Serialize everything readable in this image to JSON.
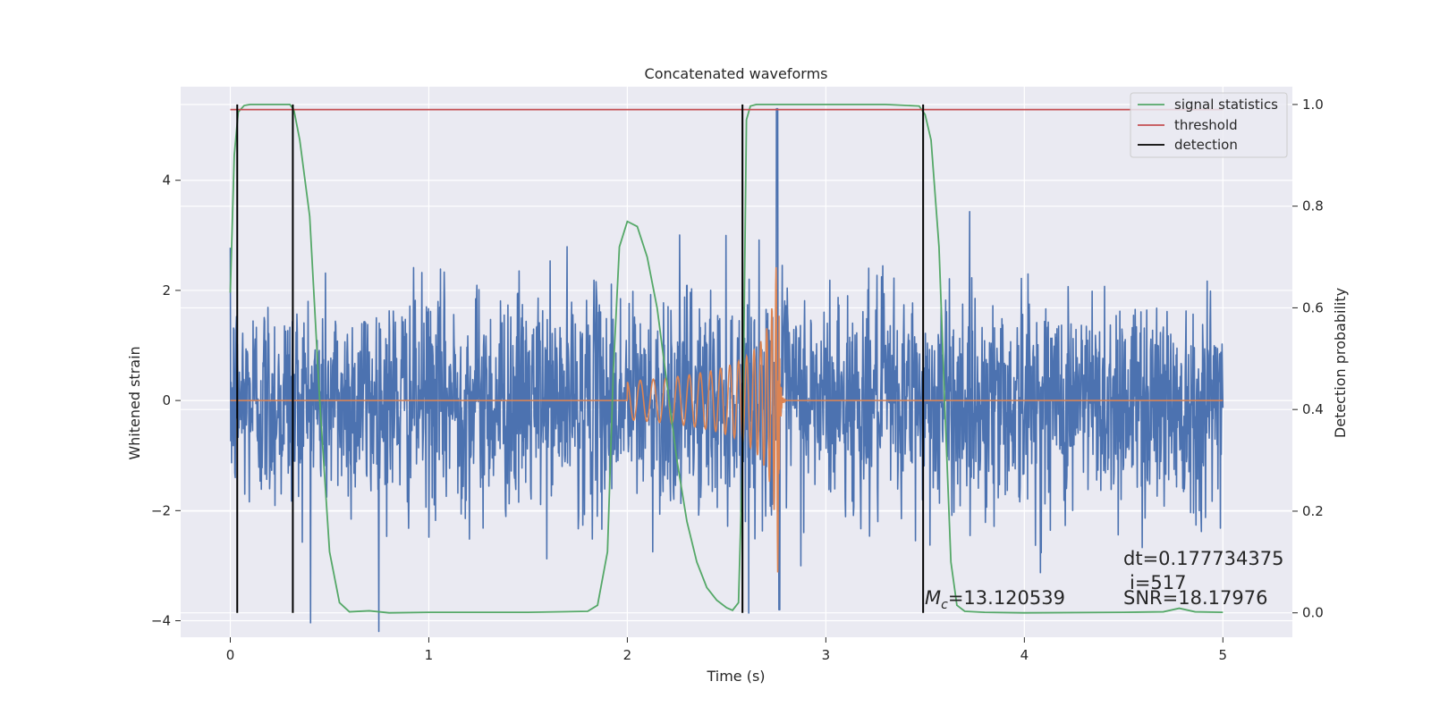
{
  "chart_data": {
    "type": "line",
    "title": "Concatenated waveforms",
    "xlabel": "Time (s)",
    "ylabel": "Whitened strain",
    "y2label": "Detection probability",
    "xlim": [
      -0.25,
      5.35
    ],
    "ylim": [
      -4.3,
      5.7
    ],
    "y2lim": [
      -0.048,
      1.035
    ],
    "xticks": [
      0,
      1,
      2,
      3,
      4,
      5
    ],
    "yticks": [
      -4,
      -2,
      0,
      2,
      4
    ],
    "y2ticks": [
      0.0,
      0.2,
      0.4,
      0.6,
      0.8,
      1.0
    ],
    "xtick_labels": [
      "0",
      "1",
      "2",
      "3",
      "4",
      "5"
    ],
    "ytick_labels": [
      "−4",
      "−2",
      "0",
      "2",
      "4"
    ],
    "y2tick_labels": [
      "0.0",
      "0.2",
      "0.4",
      "0.6",
      "0.8",
      "1.0"
    ],
    "grid": true,
    "legend_position": "top-right",
    "colors": {
      "noise": "#4c72b0",
      "template": "#dd8452",
      "signal_statistics": "#55a868",
      "threshold": "#c44e52",
      "detection": "#000000",
      "plot_bg": "#eaeaf2",
      "grid": "#ffffff"
    },
    "noise_series": {
      "x_range": [
        0,
        5
      ],
      "typical_amplitude": 1.0,
      "peak_range": [
        -3.8,
        5.3
      ]
    },
    "template_series": {
      "onset": 2.0,
      "merger": 2.76,
      "start_amplitude": 0.35,
      "peak_amplitude": 3.4
    },
    "series": [
      {
        "name": "signal statistics",
        "axis": "right",
        "x": [
          0.0,
          0.02,
          0.04,
          0.07,
          0.1,
          0.2,
          0.3,
          0.32,
          0.35,
          0.4,
          0.45,
          0.5,
          0.55,
          0.6,
          0.7,
          0.8,
          1.0,
          1.5,
          1.8,
          1.85,
          1.9,
          1.93,
          1.96,
          2.0,
          2.05,
          2.1,
          2.15,
          2.2,
          2.25,
          2.3,
          2.35,
          2.4,
          2.45,
          2.5,
          2.53,
          2.56,
          2.58,
          2.6,
          2.62,
          2.65,
          2.8,
          3.0,
          3.3,
          3.47,
          3.5,
          3.53,
          3.57,
          3.6,
          3.63,
          3.66,
          3.7,
          3.8,
          4.0,
          4.5,
          4.7,
          4.78,
          4.86,
          5.0
        ],
        "y": [
          0.63,
          0.9,
          0.985,
          0.998,
          1.0,
          1.0,
          1.0,
          0.99,
          0.93,
          0.78,
          0.42,
          0.12,
          0.02,
          0.002,
          0.004,
          0.0,
          0.001,
          0.001,
          0.003,
          0.015,
          0.12,
          0.48,
          0.72,
          0.77,
          0.76,
          0.7,
          0.6,
          0.45,
          0.3,
          0.18,
          0.1,
          0.05,
          0.025,
          0.01,
          0.005,
          0.02,
          0.3,
          0.97,
          0.997,
          1.0,
          1.0,
          1.0,
          1.0,
          0.997,
          0.98,
          0.93,
          0.72,
          0.4,
          0.1,
          0.015,
          0.003,
          0.001,
          0.0,
          0.001,
          0.002,
          0.009,
          0.002,
          0.001
        ]
      },
      {
        "name": "threshold",
        "axis": "right",
        "x": [
          0.0,
          5.0
        ],
        "y": [
          0.99,
          0.99
        ]
      }
    ],
    "detections": {
      "name": "detection",
      "x": [
        0.035,
        0.315,
        2.58,
        3.49
      ]
    },
    "legend": [
      "signal statistics",
      "threshold",
      "detection"
    ],
    "annotations": {
      "mc_prefix": "M",
      "mc_sub": "c",
      "mc_value": "=13.120539",
      "dt": "dt=0.177734375",
      "i": "i=517",
      "snr": "SNR=18.17976"
    }
  }
}
